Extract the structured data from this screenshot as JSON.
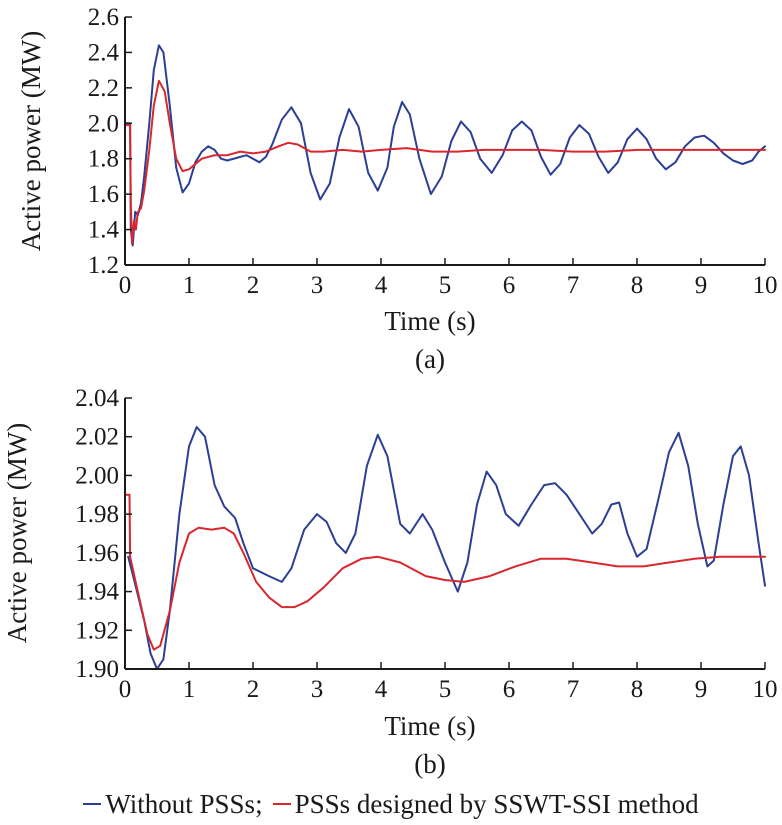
{
  "colors": {
    "without": "#2a3f95",
    "with": "#d9272e",
    "axis": "#1a1a1a"
  },
  "legend": {
    "items": [
      {
        "label": "Without PSSs",
        "color": "#2a3f95",
        "suffix": ";"
      },
      {
        "label": "PSSs designed by SSWT-SSI method",
        "color": "#d9272e",
        "suffix": ""
      }
    ]
  },
  "chart_data": [
    {
      "type": "line",
      "panel_label": "(a)",
      "xlabel": "Time (s)",
      "ylabel": "Active power (MW)",
      "xlim": [
        0,
        10
      ],
      "ylim": [
        1.2,
        2.6
      ],
      "xticks": [
        0,
        1,
        2,
        3,
        4,
        5,
        6,
        7,
        8,
        9,
        10
      ],
      "yticks": [
        "1.2",
        "1.4",
        "1.6",
        "1.8",
        "2.0",
        "2.2",
        "2.4",
        "2.6"
      ],
      "series": [
        {
          "name": "Without PSSs",
          "color": "#2a3f95",
          "points": [
            [
              0,
              2.0
            ],
            [
              0.08,
              2.0
            ],
            [
              0.09,
              1.4
            ],
            [
              0.12,
              1.31
            ],
            [
              0.16,
              1.5
            ],
            [
              0.2,
              1.48
            ],
            [
              0.25,
              1.55
            ],
            [
              0.3,
              1.7
            ],
            [
              0.38,
              2.0
            ],
            [
              0.45,
              2.3
            ],
            [
              0.53,
              2.44
            ],
            [
              0.6,
              2.4
            ],
            [
              0.7,
              2.1
            ],
            [
              0.8,
              1.75
            ],
            [
              0.9,
              1.61
            ],
            [
              1.0,
              1.66
            ],
            [
              1.1,
              1.78
            ],
            [
              1.2,
              1.84
            ],
            [
              1.3,
              1.87
            ],
            [
              1.4,
              1.85
            ],
            [
              1.5,
              1.8
            ],
            [
              1.6,
              1.79
            ],
            [
              1.8,
              1.81
            ],
            [
              1.9,
              1.82
            ],
            [
              2.1,
              1.78
            ],
            [
              2.2,
              1.81
            ],
            [
              2.3,
              1.88
            ],
            [
              2.45,
              2.02
            ],
            [
              2.6,
              2.09
            ],
            [
              2.75,
              2.0
            ],
            [
              2.9,
              1.72
            ],
            [
              3.05,
              1.57
            ],
            [
              3.2,
              1.66
            ],
            [
              3.35,
              1.92
            ],
            [
              3.5,
              2.08
            ],
            [
              3.65,
              1.98
            ],
            [
              3.8,
              1.72
            ],
            [
              3.95,
              1.62
            ],
            [
              4.1,
              1.75
            ],
            [
              4.2,
              1.98
            ],
            [
              4.33,
              2.12
            ],
            [
              4.45,
              2.05
            ],
            [
              4.6,
              1.8
            ],
            [
              4.78,
              1.6
            ],
            [
              4.95,
              1.7
            ],
            [
              5.1,
              1.9
            ],
            [
              5.25,
              2.01
            ],
            [
              5.4,
              1.95
            ],
            [
              5.55,
              1.8
            ],
            [
              5.73,
              1.72
            ],
            [
              5.9,
              1.82
            ],
            [
              6.05,
              1.96
            ],
            [
              6.2,
              2.01
            ],
            [
              6.35,
              1.96
            ],
            [
              6.5,
              1.81
            ],
            [
              6.65,
              1.71
            ],
            [
              6.8,
              1.77
            ],
            [
              6.95,
              1.92
            ],
            [
              7.1,
              1.99
            ],
            [
              7.25,
              1.94
            ],
            [
              7.4,
              1.81
            ],
            [
              7.55,
              1.72
            ],
            [
              7.7,
              1.78
            ],
            [
              7.85,
              1.91
            ],
            [
              8.0,
              1.97
            ],
            [
              8.15,
              1.91
            ],
            [
              8.3,
              1.8
            ],
            [
              8.45,
              1.74
            ],
            [
              8.6,
              1.78
            ],
            [
              8.75,
              1.87
            ],
            [
              8.9,
              1.92
            ],
            [
              9.05,
              1.93
            ],
            [
              9.2,
              1.89
            ],
            [
              9.35,
              1.83
            ],
            [
              9.5,
              1.79
            ],
            [
              9.65,
              1.77
            ],
            [
              9.8,
              1.79
            ],
            [
              9.9,
              1.84
            ],
            [
              10.0,
              1.87
            ]
          ]
        },
        {
          "name": "PSSs designed by SSWT-SSI method",
          "color": "#d9272e",
          "points": [
            [
              0,
              1.99
            ],
            [
              0.08,
              1.99
            ],
            [
              0.09,
              1.55
            ],
            [
              0.11,
              1.32
            ],
            [
              0.14,
              1.45
            ],
            [
              0.17,
              1.4
            ],
            [
              0.2,
              1.5
            ],
            [
              0.25,
              1.52
            ],
            [
              0.3,
              1.62
            ],
            [
              0.38,
              1.85
            ],
            [
              0.45,
              2.1
            ],
            [
              0.53,
              2.24
            ],
            [
              0.62,
              2.18
            ],
            [
              0.7,
              2.0
            ],
            [
              0.8,
              1.8
            ],
            [
              0.9,
              1.73
            ],
            [
              1.0,
              1.74
            ],
            [
              1.2,
              1.8
            ],
            [
              1.4,
              1.82
            ],
            [
              1.6,
              1.82
            ],
            [
              1.8,
              1.84
            ],
            [
              2.0,
              1.83
            ],
            [
              2.2,
              1.84
            ],
            [
              2.4,
              1.87
            ],
            [
              2.55,
              1.89
            ],
            [
              2.7,
              1.88
            ],
            [
              2.9,
              1.84
            ],
            [
              3.1,
              1.84
            ],
            [
              3.4,
              1.85
            ],
            [
              3.7,
              1.84
            ],
            [
              4.0,
              1.85
            ],
            [
              4.4,
              1.86
            ],
            [
              4.8,
              1.84
            ],
            [
              5.2,
              1.84
            ],
            [
              5.6,
              1.85
            ],
            [
              6.0,
              1.85
            ],
            [
              6.5,
              1.85
            ],
            [
              7.0,
              1.84
            ],
            [
              7.5,
              1.84
            ],
            [
              8.0,
              1.85
            ],
            [
              8.5,
              1.85
            ],
            [
              9.0,
              1.85
            ],
            [
              9.5,
              1.85
            ],
            [
              10.0,
              1.85
            ]
          ]
        }
      ]
    },
    {
      "type": "line",
      "panel_label": "(b)",
      "xlabel": "Time (s)",
      "ylabel": "Active power (MW)",
      "xlim": [
        0,
        10
      ],
      "ylim": [
        1.9,
        2.04
      ],
      "xticks": [
        0,
        1,
        2,
        3,
        4,
        5,
        6,
        7,
        8,
        9,
        10
      ],
      "yticks": [
        "1.90",
        "1.92",
        "1.94",
        "1.96",
        "1.98",
        "2.00",
        "2.02",
        "2.04"
      ],
      "series": [
        {
          "name": "Without PSSs",
          "color": "#2a3f95",
          "points": [
            [
              0.05,
              1.958
            ],
            [
              0.15,
              1.945
            ],
            [
              0.3,
              1.925
            ],
            [
              0.4,
              1.908
            ],
            [
              0.5,
              1.9
            ],
            [
              0.6,
              1.905
            ],
            [
              0.7,
              1.93
            ],
            [
              0.85,
              1.98
            ],
            [
              1.0,
              2.015
            ],
            [
              1.12,
              2.025
            ],
            [
              1.25,
              2.02
            ],
            [
              1.4,
              1.995
            ],
            [
              1.55,
              1.984
            ],
            [
              1.72,
              1.978
            ],
            [
              1.85,
              1.965
            ],
            [
              2.0,
              1.952
            ],
            [
              2.25,
              1.948
            ],
            [
              2.45,
              1.945
            ],
            [
              2.6,
              1.952
            ],
            [
              2.8,
              1.972
            ],
            [
              3.0,
              1.98
            ],
            [
              3.15,
              1.976
            ],
            [
              3.3,
              1.965
            ],
            [
              3.45,
              1.96
            ],
            [
              3.6,
              1.97
            ],
            [
              3.78,
              2.005
            ],
            [
              3.95,
              2.021
            ],
            [
              4.1,
              2.01
            ],
            [
              4.3,
              1.975
            ],
            [
              4.45,
              1.97
            ],
            [
              4.65,
              1.98
            ],
            [
              4.8,
              1.972
            ],
            [
              5.0,
              1.955
            ],
            [
              5.2,
              1.94
            ],
            [
              5.35,
              1.955
            ],
            [
              5.5,
              1.985
            ],
            [
              5.65,
              2.002
            ],
            [
              5.8,
              1.995
            ],
            [
              5.95,
              1.98
            ],
            [
              6.15,
              1.974
            ],
            [
              6.35,
              1.985
            ],
            [
              6.55,
              1.995
            ],
            [
              6.72,
              1.996
            ],
            [
              6.9,
              1.99
            ],
            [
              7.1,
              1.98
            ],
            [
              7.3,
              1.97
            ],
            [
              7.45,
              1.975
            ],
            [
              7.6,
              1.985
            ],
            [
              7.72,
              1.986
            ],
            [
              7.85,
              1.97
            ],
            [
              8.0,
              1.958
            ],
            [
              8.15,
              1.962
            ],
            [
              8.35,
              1.99
            ],
            [
              8.5,
              2.012
            ],
            [
              8.65,
              2.022
            ],
            [
              8.8,
              2.005
            ],
            [
              8.95,
              1.975
            ],
            [
              9.1,
              1.953
            ],
            [
              9.2,
              1.956
            ],
            [
              9.35,
              1.985
            ],
            [
              9.5,
              2.01
            ],
            [
              9.62,
              2.015
            ],
            [
              9.75,
              2.0
            ],
            [
              9.9,
              1.965
            ],
            [
              10.0,
              1.943
            ]
          ]
        },
        {
          "name": "PSSs designed by SSWT-SSI method",
          "color": "#d9272e",
          "points": [
            [
              0,
              1.99
            ],
            [
              0.07,
              1.99
            ],
            [
              0.08,
              1.958
            ],
            [
              0.2,
              1.94
            ],
            [
              0.35,
              1.918
            ],
            [
              0.45,
              1.91
            ],
            [
              0.55,
              1.912
            ],
            [
              0.7,
              1.93
            ],
            [
              0.85,
              1.955
            ],
            [
              1.0,
              1.97
            ],
            [
              1.15,
              1.973
            ],
            [
              1.35,
              1.972
            ],
            [
              1.55,
              1.973
            ],
            [
              1.7,
              1.97
            ],
            [
              1.85,
              1.96
            ],
            [
              2.05,
              1.945
            ],
            [
              2.25,
              1.937
            ],
            [
              2.45,
              1.932
            ],
            [
              2.65,
              1.932
            ],
            [
              2.85,
              1.935
            ],
            [
              3.1,
              1.942
            ],
            [
              3.4,
              1.952
            ],
            [
              3.7,
              1.957
            ],
            [
              3.95,
              1.958
            ],
            [
              4.3,
              1.955
            ],
            [
              4.7,
              1.948
            ],
            [
              5.0,
              1.946
            ],
            [
              5.3,
              1.945
            ],
            [
              5.7,
              1.948
            ],
            [
              6.1,
              1.953
            ],
            [
              6.5,
              1.957
            ],
            [
              6.9,
              1.957
            ],
            [
              7.3,
              1.955
            ],
            [
              7.7,
              1.953
            ],
            [
              8.1,
              1.953
            ],
            [
              8.5,
              1.955
            ],
            [
              8.9,
              1.957
            ],
            [
              9.3,
              1.958
            ],
            [
              9.7,
              1.958
            ],
            [
              10.0,
              1.958
            ]
          ]
        }
      ]
    }
  ]
}
